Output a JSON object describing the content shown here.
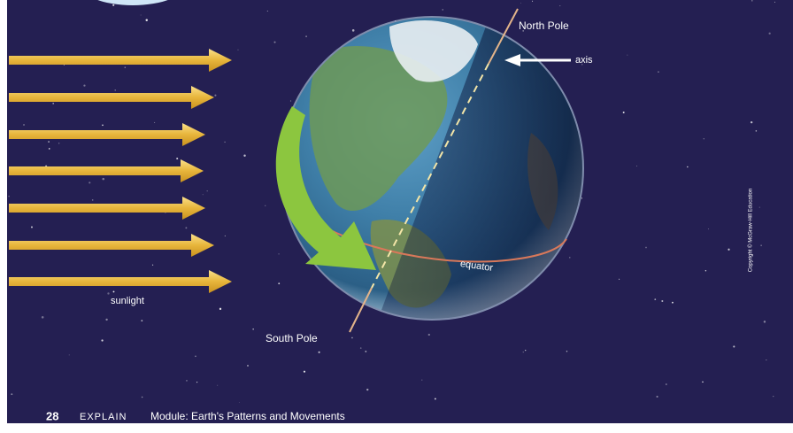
{
  "labels": {
    "north_pole": "North Pole",
    "axis": "axis",
    "sunlight": "sunlight",
    "equator": "equator",
    "south_pole": "South Pole"
  },
  "copyright": "Copyright © McGraw-Hill Education",
  "footer": {
    "page": "28",
    "section": "EXPLAIN",
    "module": "Module: Earth's Patterns and Movements"
  }
}
